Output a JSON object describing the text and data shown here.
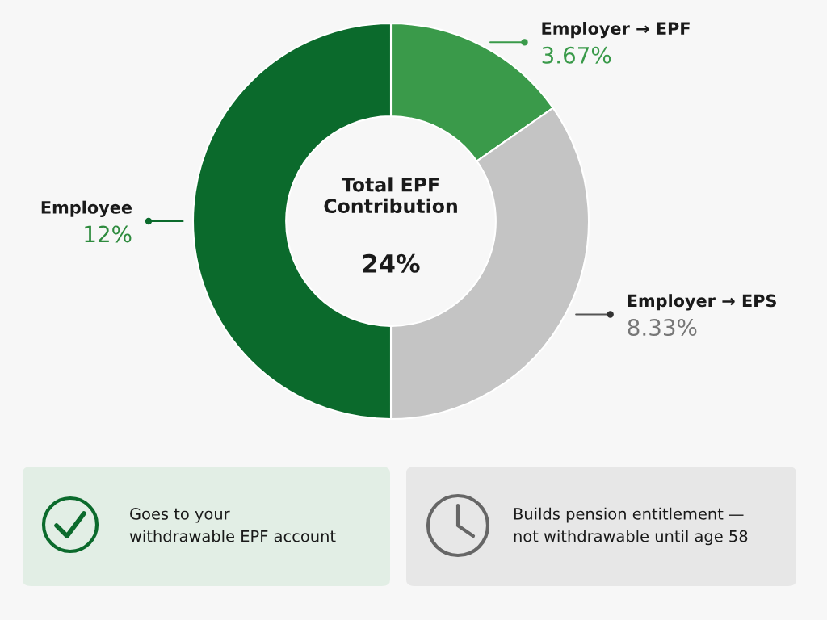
{
  "chart_data": {
    "type": "donut",
    "categories": [
      "Employer → EPF",
      "Employer → EPS",
      "Employee"
    ],
    "values": [
      3.67,
      8.33,
      12
    ],
    "colors": [
      "#3a9a4a",
      "#c4c4c4",
      "#0b6a2c"
    ],
    "value_labels": [
      "3.67%",
      "8.33%",
      "12%"
    ],
    "legend": false,
    "annotations": [
      "Total EPF\nContribution",
      "24%",
      "Goes to your\nwithdrawable EPF account",
      "Builds pension entitlement —\nnot withdrawable until age 58"
    ]
  }
}
